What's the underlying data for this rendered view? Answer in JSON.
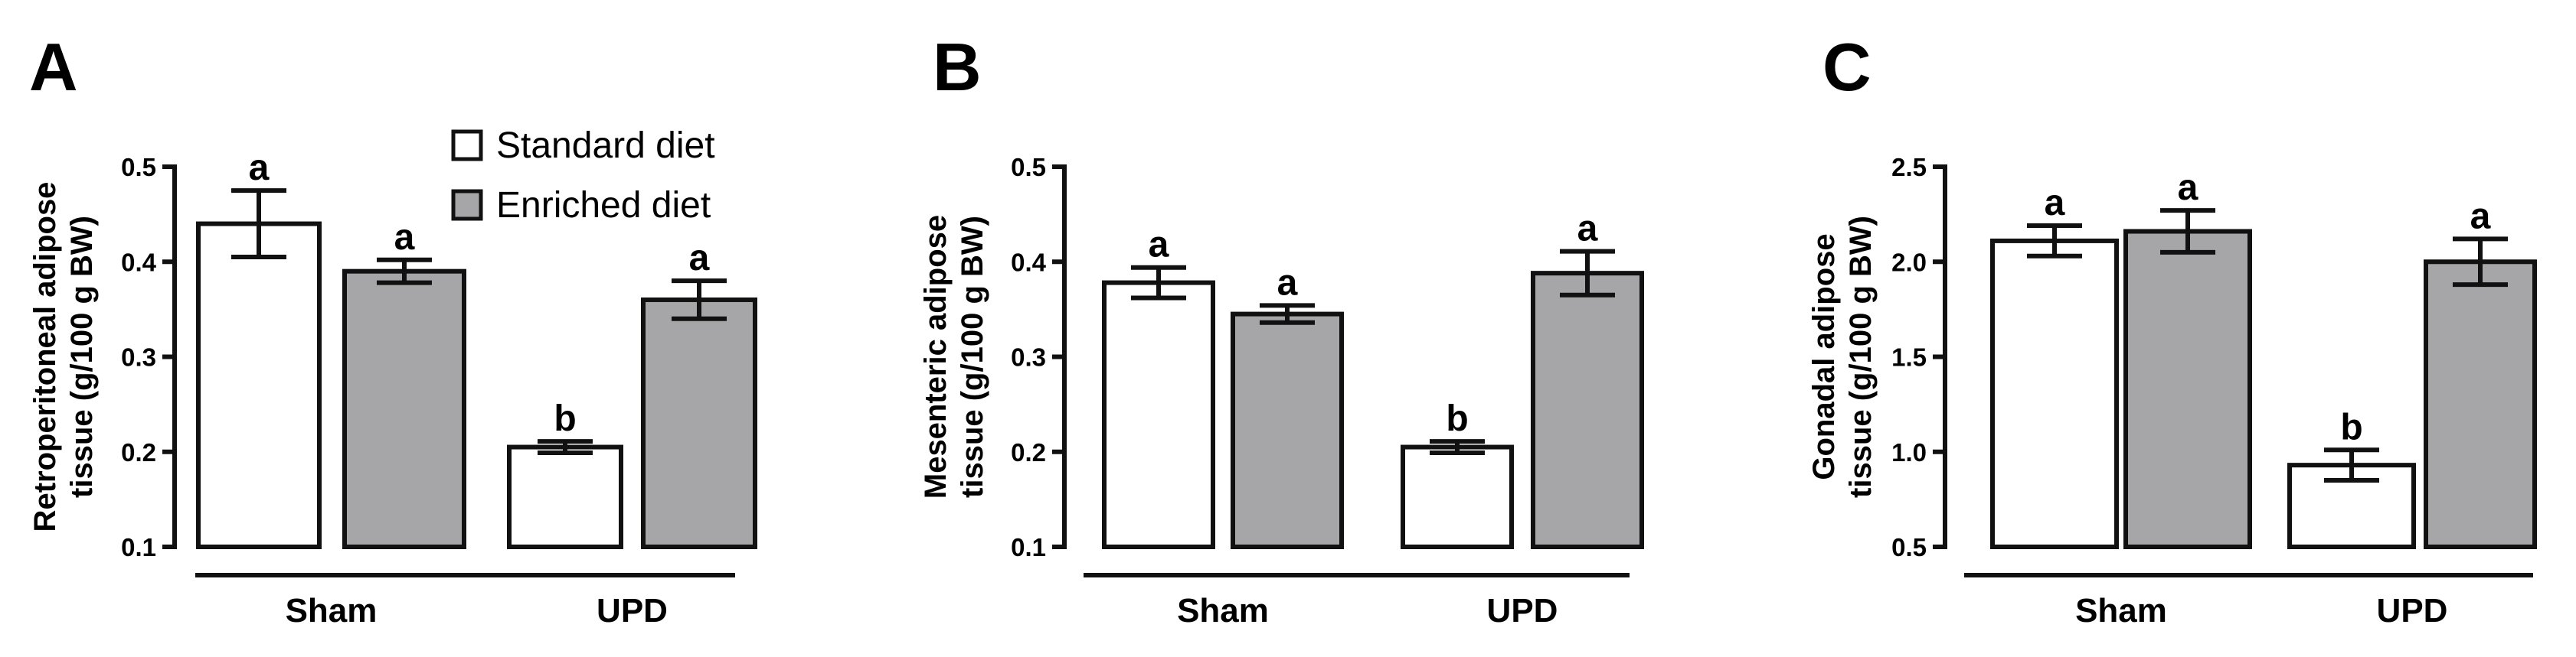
{
  "legend": {
    "entries": [
      {
        "label": "Standard diet",
        "color": "#ffffff"
      },
      {
        "label": "Enriched diet",
        "color": "#a6a6a8"
      }
    ]
  },
  "chart_data": [
    {
      "panel_label": "A",
      "type": "bar",
      "categories": [
        "Sham",
        "UPD"
      ],
      "series": [
        {
          "name": "Standard diet",
          "color": "#ffffff",
          "values": [
            0.44,
            0.205
          ],
          "errors": [
            0.035,
            0.006
          ],
          "letters": [
            "a",
            "b"
          ]
        },
        {
          "name": "Enriched diet",
          "color": "#a6a6a8",
          "values": [
            0.39,
            0.36
          ],
          "errors": [
            0.012,
            0.02
          ],
          "letters": [
            "a",
            "a"
          ]
        }
      ],
      "ylabel": [
        "Retroperitoneal adipose",
        "tissue (g/100 g BW)"
      ],
      "ylim": [
        0.1,
        0.5
      ],
      "yticks": [
        "0.1",
        "0.2",
        "0.3",
        "0.4",
        "0.5"
      ],
      "legend": "top-right"
    },
    {
      "panel_label": "B",
      "type": "bar",
      "categories": [
        "Sham",
        "UPD"
      ],
      "series": [
        {
          "name": "Standard diet",
          "color": "#ffffff",
          "values": [
            0.378,
            0.205
          ],
          "errors": [
            0.016,
            0.006
          ],
          "letters": [
            "a",
            "b"
          ]
        },
        {
          "name": "Enriched diet",
          "color": "#a6a6a8",
          "values": [
            0.345,
            0.388
          ],
          "errors": [
            0.009,
            0.023
          ],
          "letters": [
            "a",
            "a"
          ]
        }
      ],
      "ylabel": [
        "Mesenteric adipose",
        "tissue (g/100 g BW)"
      ],
      "ylim": [
        0.1,
        0.5
      ],
      "yticks": [
        "0.1",
        "0.2",
        "0.3",
        "0.4",
        "0.5"
      ]
    },
    {
      "panel_label": "C",
      "type": "bar",
      "categories": [
        "Sham",
        "UPD"
      ],
      "series": [
        {
          "name": "Standard diet",
          "color": "#ffffff",
          "values": [
            2.11,
            0.93
          ],
          "errors": [
            0.08,
            0.08
          ],
          "letters": [
            "a",
            "b"
          ]
        },
        {
          "name": "Enriched diet",
          "color": "#a6a6a8",
          "values": [
            2.16,
            2.0
          ],
          "errors": [
            0.11,
            0.12
          ],
          "letters": [
            "a",
            "a"
          ]
        }
      ],
      "ylabel": [
        "Gonadal adipose",
        "tissue (g/100 g BW)"
      ],
      "ylim": [
        0.5,
        2.5
      ],
      "yticks": [
        "0.5",
        "1.0",
        "1.5",
        "2.0",
        "2.5"
      ]
    }
  ]
}
